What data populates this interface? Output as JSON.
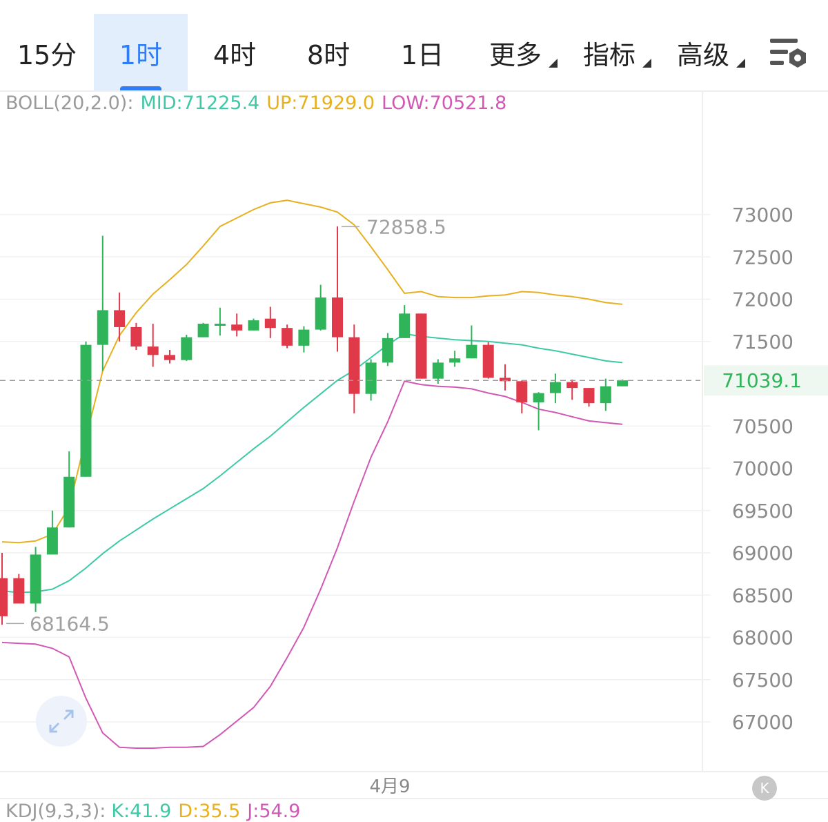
{
  "tabs": [
    {
      "label": "15分"
    },
    {
      "label": "1时"
    },
    {
      "label": "4时"
    },
    {
      "label": "8时"
    },
    {
      "label": "1日"
    },
    {
      "label": "更多"
    },
    {
      "label": "指标"
    },
    {
      "label": "高级"
    }
  ],
  "active_tab": "1时",
  "indicator": {
    "name": "BOLL(20,2.0):",
    "mid": "MID:71225.4",
    "up": "UP:71929.0",
    "low": "LOW:70521.8"
  },
  "kdj": {
    "name": "KDJ(9,3,3):",
    "k": "K:41.9",
    "d": "D:35.5",
    "j": "J:54.9"
  },
  "colors": {
    "up_candle": "#2fb45a",
    "down_candle": "#e0394a",
    "mid": "#3dc9a6",
    "upper": "#e6b020",
    "lower": "#d158b4",
    "active_tab": "#2f7df6"
  },
  "chart_data": {
    "type": "candlestick",
    "y_ticks": [
      73000,
      72500,
      72000,
      71500,
      70500,
      70000,
      69500,
      69000,
      68500,
      68000,
      67500,
      67000
    ],
    "ylim": [
      66400,
      74000
    ],
    "x_label": "4月9",
    "last_price": "71039.1",
    "high_label": "72858.5",
    "low_label": "68164.5",
    "candles": [
      {
        "open": 68700,
        "high": 69000,
        "low": 68150,
        "close": 68250
      },
      {
        "open": 68700,
        "high": 68750,
        "low": 68400,
        "close": 68400
      },
      {
        "open": 68400,
        "high": 69070,
        "low": 68300,
        "close": 68980
      },
      {
        "open": 68980,
        "high": 69500,
        "low": 68980,
        "close": 69300
      },
      {
        "open": 69300,
        "high": 70200,
        "low": 69300,
        "close": 69900
      },
      {
        "open": 69900,
        "high": 71500,
        "low": 69900,
        "close": 71460
      },
      {
        "open": 71460,
        "high": 72750,
        "low": 71150,
        "close": 71870
      },
      {
        "open": 71870,
        "high": 72080,
        "low": 71500,
        "close": 71670
      },
      {
        "open": 71670,
        "high": 71720,
        "low": 71400,
        "close": 71440
      },
      {
        "open": 71440,
        "high": 71710,
        "low": 71200,
        "close": 71340
      },
      {
        "open": 71340,
        "high": 71400,
        "low": 71240,
        "close": 71280
      },
      {
        "open": 71280,
        "high": 71580,
        "low": 71270,
        "close": 71550
      },
      {
        "open": 71550,
        "high": 71720,
        "low": 71550,
        "close": 71710
      },
      {
        "open": 71710,
        "high": 71900,
        "low": 71570,
        "close": 71710
      },
      {
        "open": 71700,
        "high": 71830,
        "low": 71560,
        "close": 71630
      },
      {
        "open": 71630,
        "high": 71770,
        "low": 71630,
        "close": 71750
      },
      {
        "open": 71770,
        "high": 71910,
        "low": 71540,
        "close": 71660
      },
      {
        "open": 71660,
        "high": 71700,
        "low": 71420,
        "close": 71450
      },
      {
        "open": 71450,
        "high": 71680,
        "low": 71370,
        "close": 71640
      },
      {
        "open": 71640,
        "high": 72170,
        "low": 71630,
        "close": 72020
      },
      {
        "open": 72020,
        "high": 72860,
        "low": 71380,
        "close": 71550
      },
      {
        "open": 71550,
        "high": 71700,
        "low": 70650,
        "close": 70880
      },
      {
        "open": 70880,
        "high": 71290,
        "low": 70800,
        "close": 71250
      },
      {
        "open": 71250,
        "high": 71600,
        "low": 71210,
        "close": 71540
      },
      {
        "open": 71540,
        "high": 71930,
        "low": 71540,
        "close": 71830
      },
      {
        "open": 71830,
        "high": 71830,
        "low": 71060,
        "close": 71060
      },
      {
        "open": 71060,
        "high": 71290,
        "low": 71000,
        "close": 71250
      },
      {
        "open": 71250,
        "high": 71390,
        "low": 71200,
        "close": 71300
      },
      {
        "open": 71300,
        "high": 71690,
        "low": 71300,
        "close": 71460
      },
      {
        "open": 71460,
        "high": 71490,
        "low": 71060,
        "close": 71070
      },
      {
        "open": 71070,
        "high": 71230,
        "low": 70920,
        "close": 71030
      },
      {
        "open": 71030,
        "high": 71040,
        "low": 70650,
        "close": 70780
      },
      {
        "open": 70780,
        "high": 70900,
        "low": 70450,
        "close": 70890
      },
      {
        "open": 70890,
        "high": 71120,
        "low": 70770,
        "close": 71020
      },
      {
        "open": 71020,
        "high": 71050,
        "low": 70810,
        "close": 70950
      },
      {
        "open": 70950,
        "high": 70950,
        "low": 70730,
        "close": 70770
      },
      {
        "open": 70770,
        "high": 71060,
        "low": 70680,
        "close": 70970
      },
      {
        "open": 70970,
        "high": 71050,
        "low": 70970,
        "close": 71040
      }
    ],
    "upper_band": [
      69130,
      69120,
      69140,
      69220,
      69540,
      70360,
      71150,
      71570,
      71840,
      72060,
      72230,
      72410,
      72630,
      72860,
      72960,
      73060,
      73140,
      73170,
      73130,
      73090,
      73030,
      72880,
      72620,
      72350,
      72070,
      72090,
      72030,
      72020,
      72020,
      72040,
      72050,
      72090,
      72080,
      72050,
      72030,
      72000,
      71960,
      71940
    ],
    "mid_band": [
      68550,
      68530,
      68540,
      68570,
      68670,
      68820,
      68990,
      69140,
      69270,
      69400,
      69520,
      69640,
      69760,
      69910,
      70070,
      70230,
      70380,
      70550,
      70720,
      70880,
      71040,
      71160,
      71310,
      71460,
      71590,
      71560,
      71540,
      71520,
      71510,
      71500,
      71480,
      71460,
      71420,
      71390,
      71350,
      71310,
      71270,
      71250
    ],
    "lower_band": [
      67940,
      67930,
      67920,
      67870,
      67770,
      67280,
      66870,
      66700,
      66690,
      66690,
      66700,
      66700,
      66710,
      66850,
      67010,
      67170,
      67420,
      67760,
      68120,
      68570,
      69060,
      69610,
      70130,
      70550,
      71030,
      70990,
      70970,
      70960,
      70940,
      70890,
      70850,
      70780,
      70700,
      70660,
      70610,
      70560,
      70540,
      70520
    ]
  }
}
